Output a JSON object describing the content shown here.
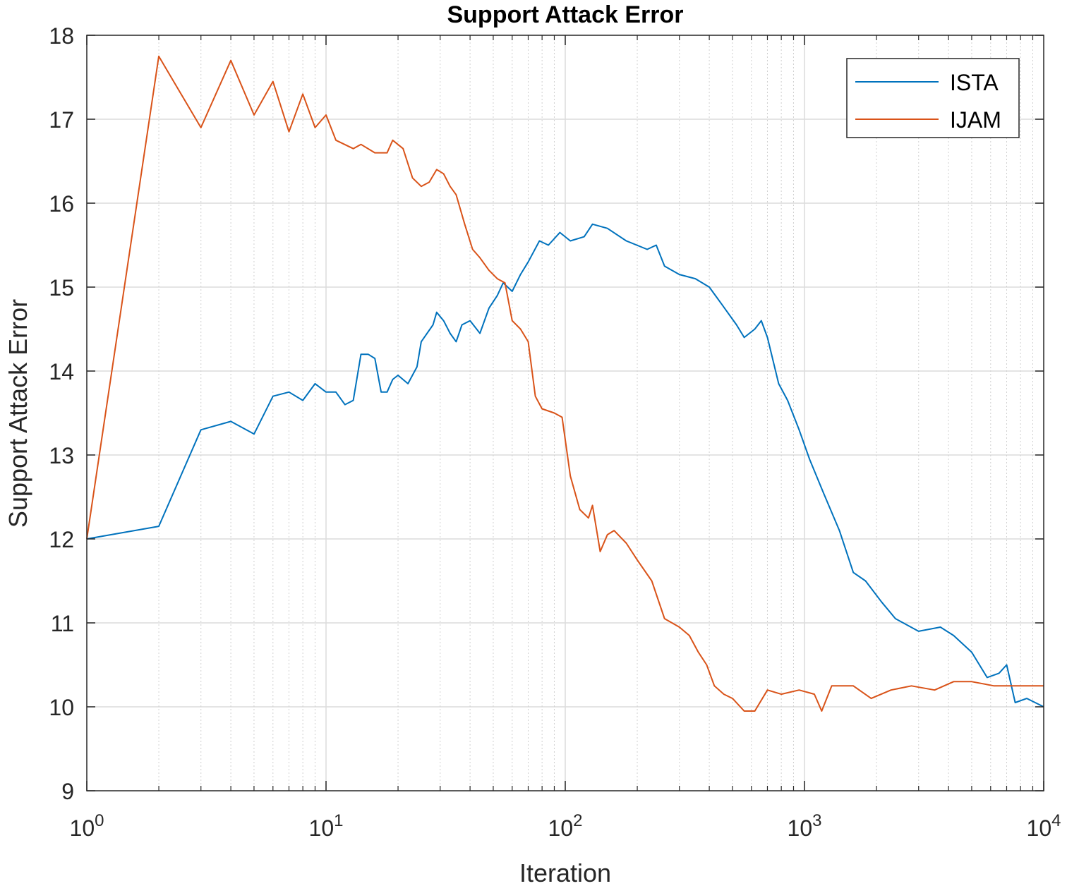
{
  "chart_data": {
    "type": "line",
    "title": "Support Attack Error",
    "xlabel": "Iteration",
    "ylabel": "Support Attack Error",
    "xscale": "log",
    "xlim": [
      1,
      10000
    ],
    "ylim": [
      9,
      18
    ],
    "grid": true,
    "minor_grid_x": true,
    "legend_position": "top-right",
    "x_tick_labels": [
      {
        "base": "10",
        "exp": "0"
      },
      {
        "base": "10",
        "exp": "1"
      },
      {
        "base": "10",
        "exp": "2"
      },
      {
        "base": "10",
        "exp": "3"
      },
      {
        "base": "10",
        "exp": "4"
      }
    ],
    "y_tick_labels": [
      "9",
      "10",
      "11",
      "12",
      "13",
      "14",
      "15",
      "16",
      "17",
      "18"
    ],
    "series": [
      {
        "name": "ISTA",
        "color": "#0072BD",
        "points": [
          [
            1,
            12.0
          ],
          [
            2,
            12.15
          ],
          [
            3,
            13.3
          ],
          [
            4,
            13.4
          ],
          [
            5,
            13.25
          ],
          [
            6,
            13.7
          ],
          [
            7,
            13.75
          ],
          [
            8,
            13.65
          ],
          [
            9,
            13.85
          ],
          [
            10,
            13.75
          ],
          [
            11,
            13.75
          ],
          [
            12,
            13.6
          ],
          [
            13,
            13.65
          ],
          [
            14,
            14.2
          ],
          [
            15,
            14.2
          ],
          [
            16,
            14.15
          ],
          [
            17,
            13.75
          ],
          [
            18,
            13.75
          ],
          [
            19,
            13.9
          ],
          [
            20,
            13.95
          ],
          [
            22,
            13.85
          ],
          [
            24,
            14.05
          ],
          [
            25,
            14.35
          ],
          [
            28,
            14.55
          ],
          [
            29,
            14.7
          ],
          [
            31,
            14.6
          ],
          [
            33,
            14.45
          ],
          [
            35,
            14.35
          ],
          [
            37,
            14.55
          ],
          [
            40,
            14.6
          ],
          [
            44,
            14.45
          ],
          [
            48,
            14.75
          ],
          [
            52,
            14.9
          ],
          [
            55,
            15.05
          ],
          [
            60,
            14.95
          ],
          [
            65,
            15.15
          ],
          [
            70,
            15.3
          ],
          [
            78,
            15.55
          ],
          [
            85,
            15.5
          ],
          [
            95,
            15.65
          ],
          [
            105,
            15.55
          ],
          [
            120,
            15.6
          ],
          [
            130,
            15.75
          ],
          [
            150,
            15.7
          ],
          [
            180,
            15.55
          ],
          [
            220,
            15.45
          ],
          [
            240,
            15.5
          ],
          [
            260,
            15.25
          ],
          [
            300,
            15.15
          ],
          [
            350,
            15.1
          ],
          [
            400,
            15.0
          ],
          [
            450,
            14.8
          ],
          [
            520,
            14.55
          ],
          [
            560,
            14.4
          ],
          [
            620,
            14.5
          ],
          [
            660,
            14.6
          ],
          [
            700,
            14.4
          ],
          [
            780,
            13.85
          ],
          [
            850,
            13.65
          ],
          [
            950,
            13.3
          ],
          [
            1050,
            12.95
          ],
          [
            1200,
            12.55
          ],
          [
            1400,
            12.1
          ],
          [
            1600,
            11.6
          ],
          [
            1800,
            11.5
          ],
          [
            2100,
            11.25
          ],
          [
            2400,
            11.05
          ],
          [
            3000,
            10.9
          ],
          [
            3700,
            10.95
          ],
          [
            4200,
            10.85
          ],
          [
            5000,
            10.65
          ],
          [
            5800,
            10.35
          ],
          [
            6500,
            10.4
          ],
          [
            7000,
            10.5
          ],
          [
            7600,
            10.05
          ],
          [
            8500,
            10.1
          ],
          [
            10000,
            10.0
          ]
        ]
      },
      {
        "name": "IJAM",
        "color": "#D95319",
        "points": [
          [
            1,
            12.0
          ],
          [
            2,
            17.75
          ],
          [
            3,
            16.9
          ],
          [
            4,
            17.7
          ],
          [
            5,
            17.05
          ],
          [
            6,
            17.45
          ],
          [
            7,
            16.85
          ],
          [
            8,
            17.3
          ],
          [
            9,
            16.9
          ],
          [
            10,
            17.05
          ],
          [
            11,
            16.75
          ],
          [
            13,
            16.65
          ],
          [
            14,
            16.7
          ],
          [
            16,
            16.6
          ],
          [
            18,
            16.6
          ],
          [
            19,
            16.75
          ],
          [
            21,
            16.65
          ],
          [
            23,
            16.3
          ],
          [
            25,
            16.2
          ],
          [
            27,
            16.25
          ],
          [
            29,
            16.4
          ],
          [
            31,
            16.35
          ],
          [
            33,
            16.2
          ],
          [
            35,
            16.1
          ],
          [
            38,
            15.75
          ],
          [
            41,
            15.45
          ],
          [
            44,
            15.35
          ],
          [
            48,
            15.2
          ],
          [
            52,
            15.1
          ],
          [
            56,
            15.05
          ],
          [
            60,
            14.6
          ],
          [
            65,
            14.5
          ],
          [
            70,
            14.35
          ],
          [
            75,
            13.7
          ],
          [
            80,
            13.55
          ],
          [
            90,
            13.5
          ],
          [
            97,
            13.45
          ],
          [
            105,
            12.75
          ],
          [
            115,
            12.35
          ],
          [
            125,
            12.25
          ],
          [
            130,
            12.4
          ],
          [
            140,
            11.85
          ],
          [
            150,
            12.05
          ],
          [
            160,
            12.1
          ],
          [
            180,
            11.95
          ],
          [
            200,
            11.75
          ],
          [
            230,
            11.5
          ],
          [
            260,
            11.05
          ],
          [
            300,
            10.95
          ],
          [
            330,
            10.85
          ],
          [
            360,
            10.65
          ],
          [
            390,
            10.5
          ],
          [
            420,
            10.25
          ],
          [
            460,
            10.15
          ],
          [
            500,
            10.1
          ],
          [
            560,
            9.95
          ],
          [
            620,
            9.95
          ],
          [
            700,
            10.2
          ],
          [
            800,
            10.15
          ],
          [
            950,
            10.2
          ],
          [
            1100,
            10.15
          ],
          [
            1180,
            9.95
          ],
          [
            1300,
            10.25
          ],
          [
            1600,
            10.25
          ],
          [
            1900,
            10.1
          ],
          [
            2300,
            10.2
          ],
          [
            2800,
            10.25
          ],
          [
            3500,
            10.2
          ],
          [
            4200,
            10.3
          ],
          [
            5000,
            10.3
          ],
          [
            6200,
            10.25
          ],
          [
            10000,
            10.25
          ]
        ]
      }
    ]
  }
}
